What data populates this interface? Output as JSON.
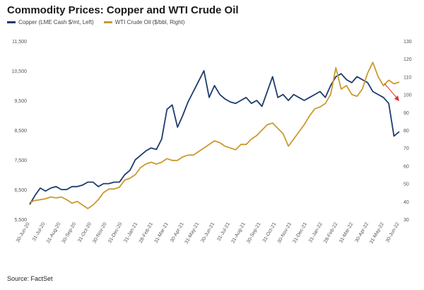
{
  "header": {
    "title": "Commodity Prices: Copper and WTI Crude Oil"
  },
  "footer": {
    "source": "Source: FactSet"
  },
  "colors": {
    "copper": "#1f3a6e",
    "oil": "#c99a2e",
    "arrow": "#e03030",
    "axis_text": "#555555"
  },
  "chart_data": {
    "type": "line",
    "title": "Commodity Prices: Copper and WTI Crude Oil",
    "legend_position": "top-left",
    "grid": false,
    "left_axis": {
      "ylim": [
        5500,
        11500
      ],
      "ticks": [
        "5,500",
        "6,500",
        "7,500",
        "8,500",
        "9,500",
        "10,500",
        "11,500"
      ],
      "tick_values": [
        5500,
        6500,
        7500,
        8500,
        9500,
        10500,
        11500
      ]
    },
    "right_axis": {
      "ylim": [
        30,
        130
      ],
      "ticks": [
        "30",
        "40",
        "50",
        "60",
        "70",
        "80",
        "90",
        "100",
        "110",
        "120",
        "130"
      ],
      "tick_values": [
        30,
        40,
        50,
        60,
        70,
        80,
        90,
        100,
        110,
        120,
        130
      ]
    },
    "x_ticks": [
      "30-Jun-20",
      "31-Jul-20",
      "31-Aug-20",
      "30-Sep-20",
      "31-Oct-20",
      "30-Nov-20",
      "31-Dec-20",
      "31-Jan-21",
      "28-Feb-21",
      "31-Mar-21",
      "30-Apr-21",
      "31-May-21",
      "30-Jun-21",
      "31-Jul-21",
      "31-Aug-21",
      "30-Sep-21",
      "31-Oct-21",
      "30-Nov-21",
      "31-Dec-21",
      "31-Jan-22",
      "28-Feb-22",
      "31-Mar-22",
      "30-Apr-22",
      "31-May-22",
      "30-Jun-22"
    ],
    "series": [
      {
        "name": "Copper (LME Cash $/mt, Left)",
        "axis": "left",
        "values": [
          6000,
          6300,
          6550,
          6450,
          6550,
          6600,
          6500,
          6500,
          6600,
          6600,
          6650,
          6750,
          6750,
          6600,
          6700,
          6700,
          6750,
          6750,
          7000,
          7150,
          7500,
          7650,
          7800,
          7900,
          7850,
          8200,
          9200,
          9350,
          8600,
          9000,
          9450,
          9800,
          10150,
          10500,
          9600,
          10000,
          9700,
          9550,
          9450,
          9400,
          9500,
          9600,
          9400,
          9500,
          9300,
          9800,
          10300,
          9600,
          9700,
          9500,
          9700,
          9600,
          9500,
          9600,
          9700,
          9800,
          9600,
          10000,
          10300,
          10400,
          10200,
          10100,
          10300,
          10200,
          10100,
          9800,
          9700,
          9600,
          9400,
          8300,
          8450
        ]
      },
      {
        "name": "WTI Crude Oil ($/bbl, Right)",
        "axis": "right",
        "values": [
          39.5,
          40.5,
          41,
          41.5,
          42.5,
          42,
          42.5,
          41,
          39,
          40,
          38,
          36,
          38,
          41,
          45,
          47,
          47,
          48,
          52,
          53,
          55,
          59,
          61,
          62,
          61,
          62,
          64,
          63,
          63,
          65,
          66,
          66,
          68,
          70,
          72,
          74,
          73,
          71,
          70,
          69,
          72,
          72,
          75,
          77,
          80,
          83,
          84,
          81,
          78,
          71,
          75,
          79,
          83,
          88,
          92,
          93,
          95,
          100,
          115,
          103,
          105,
          100,
          99,
          103,
          112,
          118,
          110,
          105,
          108,
          106,
          107
        ]
      }
    ],
    "annotation": "arrow"
  }
}
